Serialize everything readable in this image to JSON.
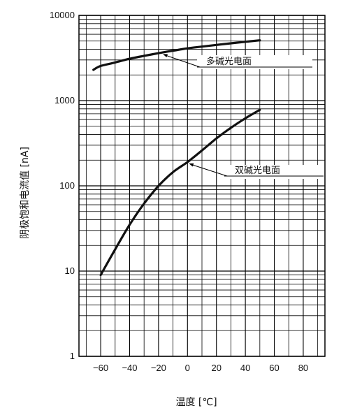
{
  "chart_data": {
    "type": "line",
    "xlabel": "温度 [℃]",
    "ylabel": "阴极饱和电流值 [nA]",
    "xlim": [
      -75,
      95
    ],
    "ylim": [
      1,
      10000
    ],
    "y_scale": "log",
    "grid": true,
    "x_ticks": [
      -60,
      -40,
      -20,
      0,
      20,
      40,
      60,
      80
    ],
    "x_tick_labels": [
      "−60",
      "−40",
      "−20",
      "0",
      "20",
      "40",
      "60",
      "80"
    ],
    "y_ticks": [
      1,
      10,
      100,
      1000,
      10000
    ],
    "y_tick_labels": [
      "1",
      "10",
      "100",
      "1000",
      "10000"
    ],
    "series": [
      {
        "name": "多碱光电面",
        "x": [
          -65,
          -60,
          -50,
          -40,
          -30,
          -20,
          -10,
          0,
          10,
          20,
          30,
          40,
          50
        ],
        "y": [
          2300,
          2550,
          2800,
          3100,
          3350,
          3600,
          3850,
          4100,
          4300,
          4500,
          4700,
          4900,
          5100
        ]
      },
      {
        "name": "双碱光电面",
        "x": [
          -60,
          -50,
          -40,
          -30,
          -20,
          -10,
          0,
          10,
          20,
          30,
          40,
          50
        ],
        "y": [
          9,
          18,
          35,
          62,
          100,
          145,
          190,
          260,
          360,
          480,
          620,
          780
        ]
      }
    ],
    "annotations": [
      {
        "text": "多碱光电面",
        "series": 0,
        "at_x": -18
      },
      {
        "text": "双碱光电面",
        "series": 1,
        "at_x": 0
      }
    ]
  }
}
